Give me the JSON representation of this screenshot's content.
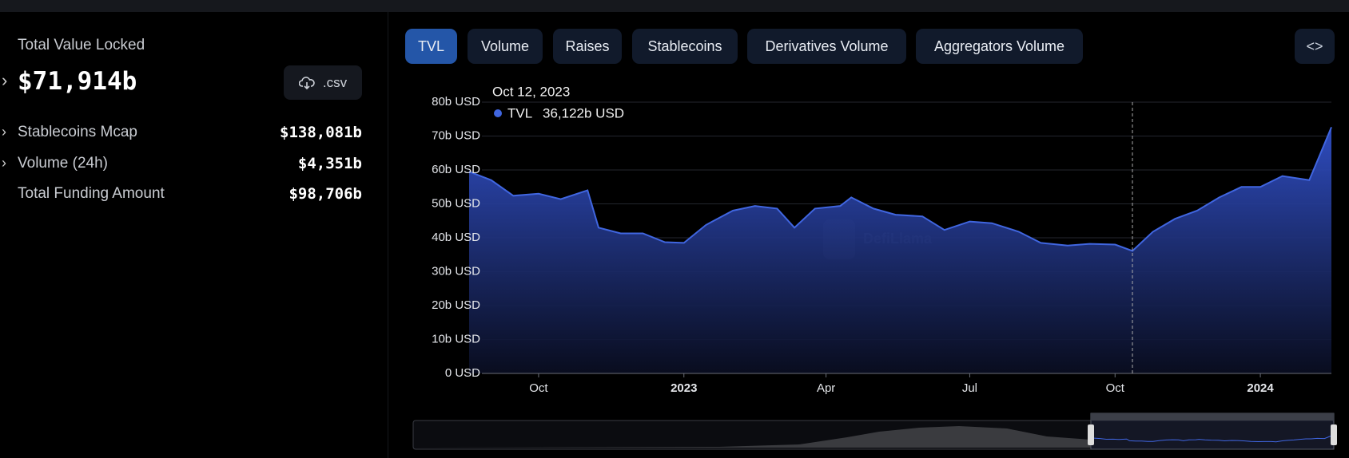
{
  "summary": {
    "title": "Total Value Locked",
    "total": "$71,914b",
    "csv": ".csv",
    "rows": [
      {
        "label": "Stablecoins Mcap",
        "value": "$138,081b"
      },
      {
        "label": "Volume (24h)",
        "value": "$4,351b"
      },
      {
        "label": "Total Funding Amount",
        "value": "$98,706b"
      }
    ]
  },
  "tabs": [
    "TVL",
    "Volume",
    "Raises",
    "Stablecoins",
    "Derivatives Volume",
    "Aggregators Volume"
  ],
  "chart_data": {
    "type": "area",
    "watermark": "DefiLlama",
    "x": [
      "2022-08-18",
      "2022-09-01",
      "2022-09-15",
      "2022-10-01",
      "2022-10-15",
      "2022-11-01",
      "2022-11-08",
      "2022-11-22",
      "2022-12-06",
      "2022-12-20",
      "2023-01-01",
      "2023-01-15",
      "2023-02-01",
      "2023-02-15",
      "2023-03-01",
      "2023-03-12",
      "2023-03-25",
      "2023-04-10",
      "2023-04-17",
      "2023-05-01",
      "2023-05-15",
      "2023-06-01",
      "2023-06-15",
      "2023-07-01",
      "2023-07-15",
      "2023-08-01",
      "2023-08-15",
      "2023-09-01",
      "2023-09-15",
      "2023-10-01",
      "2023-10-12",
      "2023-10-25",
      "2023-11-08",
      "2023-11-22",
      "2023-12-06",
      "2023-12-20",
      "2024-01-01",
      "2024-01-15",
      "2024-02-01",
      "2024-02-10",
      "2024-02-15"
    ],
    "series": [
      {
        "name": "TVL",
        "color": "#4066e0",
        "values": [
          59.5,
          57,
          52.4,
          53,
          51.4,
          54,
          43,
          41.3,
          41.3,
          38.7,
          38.5,
          43.8,
          48,
          49.4,
          48.6,
          43,
          48.6,
          49.4,
          51.9,
          48.6,
          46.8,
          46.3,
          42.3,
          44.8,
          44.3,
          41.8,
          38.5,
          37.7,
          38.2,
          38,
          36.122,
          41.8,
          45.6,
          48,
          51.9,
          55,
          55,
          58.2,
          57,
          67,
          72.6
        ]
      }
    ],
    "xlim": [
      "2022-08-18",
      "2024-02-15"
    ],
    "xticks": [
      {
        "value": "2022-10-01",
        "label": "Oct"
      },
      {
        "value": "2023-01-01",
        "label": "2023"
      },
      {
        "value": "2023-04-01",
        "label": "Apr"
      },
      {
        "value": "2023-07-01",
        "label": "Jul"
      },
      {
        "value": "2023-10-01",
        "label": "Oct"
      },
      {
        "value": "2024-01-01",
        "label": "2024"
      }
    ],
    "ylim": [
      0,
      80
    ],
    "yticks": [
      {
        "value": 0,
        "label": "0 USD"
      },
      {
        "value": 10,
        "label": "10b USD"
      },
      {
        "value": 20,
        "label": "20b USD"
      },
      {
        "value": 30,
        "label": "30b USD"
      },
      {
        "value": 40,
        "label": "40b USD"
      },
      {
        "value": 50,
        "label": "50b USD"
      },
      {
        "value": 60,
        "label": "60b USD"
      },
      {
        "value": 70,
        "label": "70b USD"
      },
      {
        "value": 80,
        "label": "80b USD"
      }
    ],
    "grid": true,
    "tooltip": {
      "x": "2023-10-12",
      "label": "Oct 12, 2023",
      "value_label": "36,122b USD"
    }
  }
}
